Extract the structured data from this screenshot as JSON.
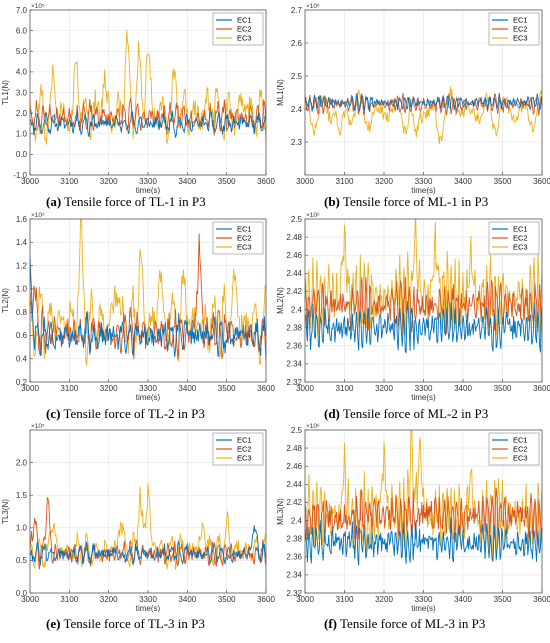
{
  "colors": {
    "EC1": "#0072BD",
    "EC2": "#D95319",
    "EC3": "#EDB120",
    "grid": "#e2e2e2",
    "axis": "#555555"
  },
  "chart_data": [
    {
      "id": "a",
      "type": "line",
      "caption_letter": "(a)",
      "caption_text": " Tensile force of TL-1 in P3",
      "xlabel": "time(s)",
      "ylabel": "TL1(N)",
      "exponent": "×10⁵",
      "xlim": [
        3000,
        3600
      ],
      "ylim": [
        -1.0,
        7.0
      ],
      "xticks": [
        3000,
        3100,
        3200,
        3300,
        3400,
        3500,
        3600
      ],
      "xtick_labels": [
        "3000",
        "3100",
        "3200",
        "3300",
        "3400",
        "3500",
        "3600"
      ],
      "yticks": [
        -1.0,
        0.0,
        1.0,
        2.0,
        3.0,
        4.0,
        5.0,
        6.0,
        7.0
      ],
      "ytick_labels": [
        "-1.0",
        "0.0",
        "1.0",
        "2.0",
        "3.0",
        "4.0",
        "5.0",
        "6.0",
        "7.0"
      ],
      "grid": true,
      "legend_position": "top-right",
      "series": [
        {
          "name": "EC1",
          "base": 1.5,
          "amp": 0.45,
          "noise": 0.25,
          "seed": 11,
          "bursts": [],
          "period": 14
        },
        {
          "name": "EC2",
          "base": 1.8,
          "amp": 0.65,
          "noise": 0.35,
          "seed": 23,
          "bursts": [],
          "period": 11
        },
        {
          "name": "EC3",
          "base": 1.9,
          "amp": 1.2,
          "noise": 0.6,
          "seed": 37,
          "period": 22,
          "bursts": [
            [
              3060,
              3.9
            ],
            [
              3120,
              4.5
            ],
            [
              3190,
              3.8
            ],
            [
              3245,
              5.8
            ],
            [
              3275,
              5.0
            ],
            [
              3300,
              5.6
            ],
            [
              3370,
              4.0
            ],
            [
              3460,
              3.0
            ],
            [
              3540,
              2.8
            ]
          ]
        }
      ]
    },
    {
      "id": "b",
      "type": "line",
      "caption_letter": "(b)",
      "caption_text": " Tensile force of ML-1 in P3",
      "xlabel": "time(s)",
      "ylabel": "ML1(N)",
      "exponent": "×10⁶",
      "xlim": [
        3000,
        3600
      ],
      "ylim": [
        2.2,
        2.7
      ],
      "xticks": [
        3000,
        3100,
        3200,
        3300,
        3400,
        3500,
        3600
      ],
      "xtick_labels": [
        "3000",
        "3100",
        "3200",
        "3300",
        "3400",
        "3500",
        "3600"
      ],
      "yticks": [
        2.3,
        2.4,
        2.5,
        2.6,
        2.7
      ],
      "ytick_labels": [
        "2.3",
        "2.4",
        "2.5",
        "2.6",
        "2.7"
      ],
      "grid": true,
      "legend_position": "top-right",
      "series": [
        {
          "name": "EC1",
          "base": 2.42,
          "amp": 0.02,
          "noise": 0.01,
          "seed": 5,
          "bursts": [],
          "period": 6
        },
        {
          "name": "EC2",
          "base": 2.415,
          "amp": 0.025,
          "noise": 0.012,
          "seed": 9,
          "bursts": [],
          "period": 7
        },
        {
          "name": "EC3",
          "base": 2.39,
          "amp": 0.06,
          "noise": 0.02,
          "seed": 13,
          "period": 40,
          "bursts": [
            [
              3090,
              2.31
            ],
            [
              3280,
              2.28
            ],
            [
              3340,
              2.32
            ],
            [
              3390,
              2.45
            ]
          ]
        }
      ]
    },
    {
      "id": "c",
      "type": "line",
      "caption_letter": "(c)",
      "caption_text": " Tensile force of TL-2 in P3",
      "xlabel": "time(s)",
      "ylabel": "TL2(N)",
      "exponent": "×10⁵",
      "xlim": [
        3000,
        3600
      ],
      "ylim": [
        0.2,
        1.6
      ],
      "xticks": [
        3000,
        3100,
        3200,
        3300,
        3400,
        3500,
        3600
      ],
      "xtick_labels": [
        "3000",
        "3100",
        "3200",
        "3300",
        "3400",
        "3500",
        "3600"
      ],
      "yticks": [
        0.2,
        0.4,
        0.6,
        0.8,
        1.0,
        1.2,
        1.4,
        1.6
      ],
      "ytick_labels": [
        "0.2",
        "0.4",
        "0.6",
        "0.8",
        "1.0",
        "1.2",
        "1.4",
        "1.6"
      ],
      "grid": true,
      "legend_position": "top-right",
      "series": [
        {
          "name": "EC1",
          "base": 0.6,
          "amp": 0.12,
          "noise": 0.08,
          "seed": 17,
          "bursts": [
            [
              3000,
              1.2
            ]
          ],
          "period": 12
        },
        {
          "name": "EC2",
          "base": 0.62,
          "amp": 0.15,
          "noise": 0.1,
          "seed": 29,
          "bursts": [
            [
              3010,
              1.1
            ],
            [
              3430,
              1.38
            ]
          ],
          "period": 10
        },
        {
          "name": "EC3",
          "base": 0.7,
          "amp": 0.25,
          "noise": 0.12,
          "seed": 41,
          "period": 20,
          "bursts": [
            [
              3130,
              1.45
            ],
            [
              3220,
              1.15
            ],
            [
              3280,
              1.4
            ],
            [
              3330,
              1.2
            ],
            [
              3390,
              1.05
            ],
            [
              3520,
              1.1
            ]
          ]
        }
      ]
    },
    {
      "id": "d",
      "type": "line",
      "caption_letter": "(d)",
      "caption_text": " Tensile force of ML-2 in P3",
      "xlabel": "time(s)",
      "ylabel": "ML2(N)",
      "exponent": "×10⁶",
      "xlim": [
        3000,
        3600
      ],
      "ylim": [
        2.32,
        2.5
      ],
      "xticks": [
        3000,
        3100,
        3200,
        3300,
        3400,
        3500,
        3600
      ],
      "xtick_labels": [
        "3000",
        "3100",
        "3200",
        "3300",
        "3400",
        "3500",
        "3600"
      ],
      "yticks": [
        2.32,
        2.34,
        2.36,
        2.38,
        2.4,
        2.42,
        2.44,
        2.46,
        2.48,
        2.5
      ],
      "ytick_labels": [
        "2.32",
        "2.34",
        "2.36",
        "2.38",
        "2.4",
        "2.42",
        "2.44",
        "2.46",
        "2.48",
        "2.5"
      ],
      "grid": true,
      "legend_position": "top-right",
      "series": [
        {
          "name": "EC1",
          "base": 2.38,
          "amp": 0.02,
          "noise": 0.012,
          "seed": 3,
          "bursts": [],
          "period": 4
        },
        {
          "name": "EC2",
          "base": 2.405,
          "amp": 0.02,
          "noise": 0.014,
          "seed": 7,
          "bursts": [],
          "period": 5
        },
        {
          "name": "EC3",
          "base": 2.415,
          "amp": 0.035,
          "noise": 0.018,
          "seed": 19,
          "period": 4,
          "bursts": [
            [
              3100,
              2.48
            ],
            [
              3280,
              2.49
            ],
            [
              3330,
              2.47
            ],
            [
              3420,
              2.46
            ]
          ]
        }
      ]
    },
    {
      "id": "e",
      "type": "line",
      "caption_letter": "(e)",
      "caption_text": " Tensile force of TL-3 in P3",
      "xlabel": "time(s)",
      "ylabel": "TL3(N)",
      "exponent": "×10⁵",
      "xlim": [
        3000,
        3600
      ],
      "ylim": [
        0.0,
        2.5
      ],
      "xticks": [
        3000,
        3100,
        3200,
        3300,
        3400,
        3500,
        3600
      ],
      "xtick_labels": [
        "3000",
        "3100",
        "3200",
        "3300",
        "3400",
        "3500",
        "3600"
      ],
      "yticks": [
        0.0,
        0.5,
        1.0,
        1.5,
        2.0
      ],
      "ytick_labels": [
        "0.0",
        "0.5",
        "1.0",
        "1.5",
        "2.0"
      ],
      "grid": true,
      "legend_position": "top-right",
      "series": [
        {
          "name": "EC1",
          "base": 0.6,
          "amp": 0.12,
          "noise": 0.08,
          "seed": 31,
          "bursts": [
            [
              3570,
              1.1
            ]
          ],
          "period": 12
        },
        {
          "name": "EC2",
          "base": 0.6,
          "amp": 0.15,
          "noise": 0.1,
          "seed": 43,
          "bursts": [
            [
              3010,
              1.2
            ],
            [
              3045,
              1.5
            ]
          ],
          "period": 10
        },
        {
          "name": "EC3",
          "base": 0.65,
          "amp": 0.22,
          "noise": 0.12,
          "seed": 53,
          "period": 18,
          "bursts": [
            [
              3060,
              1.3
            ],
            [
              3230,
              1.2
            ],
            [
              3280,
              1.6
            ],
            [
              3300,
              1.7
            ],
            [
              3440,
              1.1
            ],
            [
              3500,
              1.1
            ]
          ]
        }
      ]
    },
    {
      "id": "f",
      "type": "line",
      "caption_letter": "(f)",
      "caption_text": " Tensile force of ML-3 in P3",
      "xlabel": "time(s)",
      "ylabel": "ML3(N)",
      "exponent": "×10⁶",
      "xlim": [
        3000,
        3600
      ],
      "ylim": [
        2.32,
        2.5
      ],
      "xticks": [
        3000,
        3100,
        3200,
        3300,
        3400,
        3500,
        3600
      ],
      "xtick_labels": [
        "3000",
        "3100",
        "3200",
        "3300",
        "3400",
        "3500",
        "3600"
      ],
      "yticks": [
        2.32,
        2.34,
        2.36,
        2.38,
        2.4,
        2.42,
        2.44,
        2.46,
        2.48,
        2.5
      ],
      "ytick_labels": [
        "2.32",
        "2.34",
        "2.36",
        "2.38",
        "2.4",
        "2.42",
        "2.44",
        "2.46",
        "2.48",
        "2.5"
      ],
      "grid": true,
      "legend_position": "top-right",
      "series": [
        {
          "name": "EC1",
          "base": 2.375,
          "amp": 0.018,
          "noise": 0.012,
          "seed": 61,
          "bursts": [],
          "period": 4
        },
        {
          "name": "EC2",
          "base": 2.405,
          "amp": 0.02,
          "noise": 0.014,
          "seed": 67,
          "bursts": [],
          "period": 5
        },
        {
          "name": "EC3",
          "base": 2.405,
          "amp": 0.035,
          "noise": 0.02,
          "seed": 71,
          "period": 4,
          "bursts": [
            [
              3100,
              2.46
            ],
            [
              3200,
              2.47
            ],
            [
              3270,
              2.48
            ],
            [
              3290,
              2.49
            ],
            [
              3420,
              2.45
            ]
          ]
        }
      ]
    }
  ]
}
